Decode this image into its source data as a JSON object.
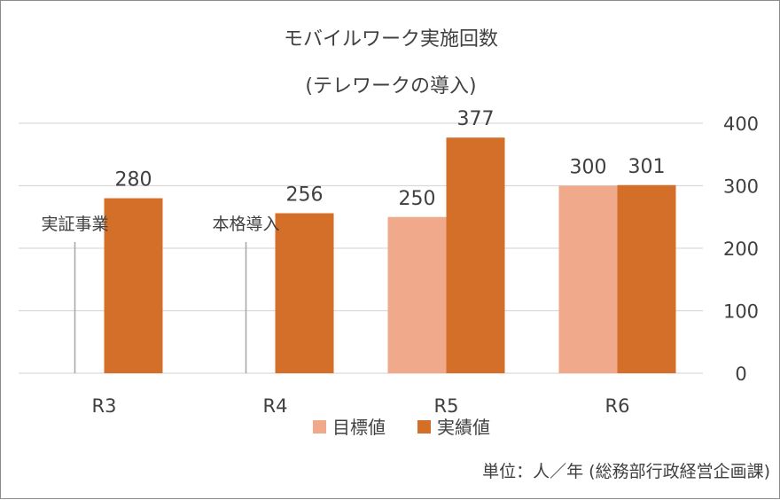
{
  "chart_data": {
    "type": "bar",
    "title_line1": "モバイルワーク実施回数",
    "title_line2": "(テレワークの導入)",
    "categories": [
      "R3",
      "R4",
      "R5",
      "R6"
    ],
    "series": [
      {
        "name": "目標値",
        "values": [
          null,
          null,
          250,
          300
        ],
        "color": "#f0a98a"
      },
      {
        "name": "実績値",
        "values": [
          280,
          256,
          377,
          301
        ],
        "color": "#d46f2a"
      }
    ],
    "yaxis": {
      "position": "right",
      "ticks": [
        "0",
        "100",
        "200",
        "300",
        "400"
      ],
      "ylim": [
        0,
        400
      ]
    },
    "grid": true,
    "legend_position": "bottom-center",
    "annotations": [
      {
        "text": "実証事業",
        "category": "R3"
      },
      {
        "text": "本格導入",
        "category": "R4"
      }
    ],
    "source_note": "単位：人／年 (総務部行政経営企画課)"
  }
}
